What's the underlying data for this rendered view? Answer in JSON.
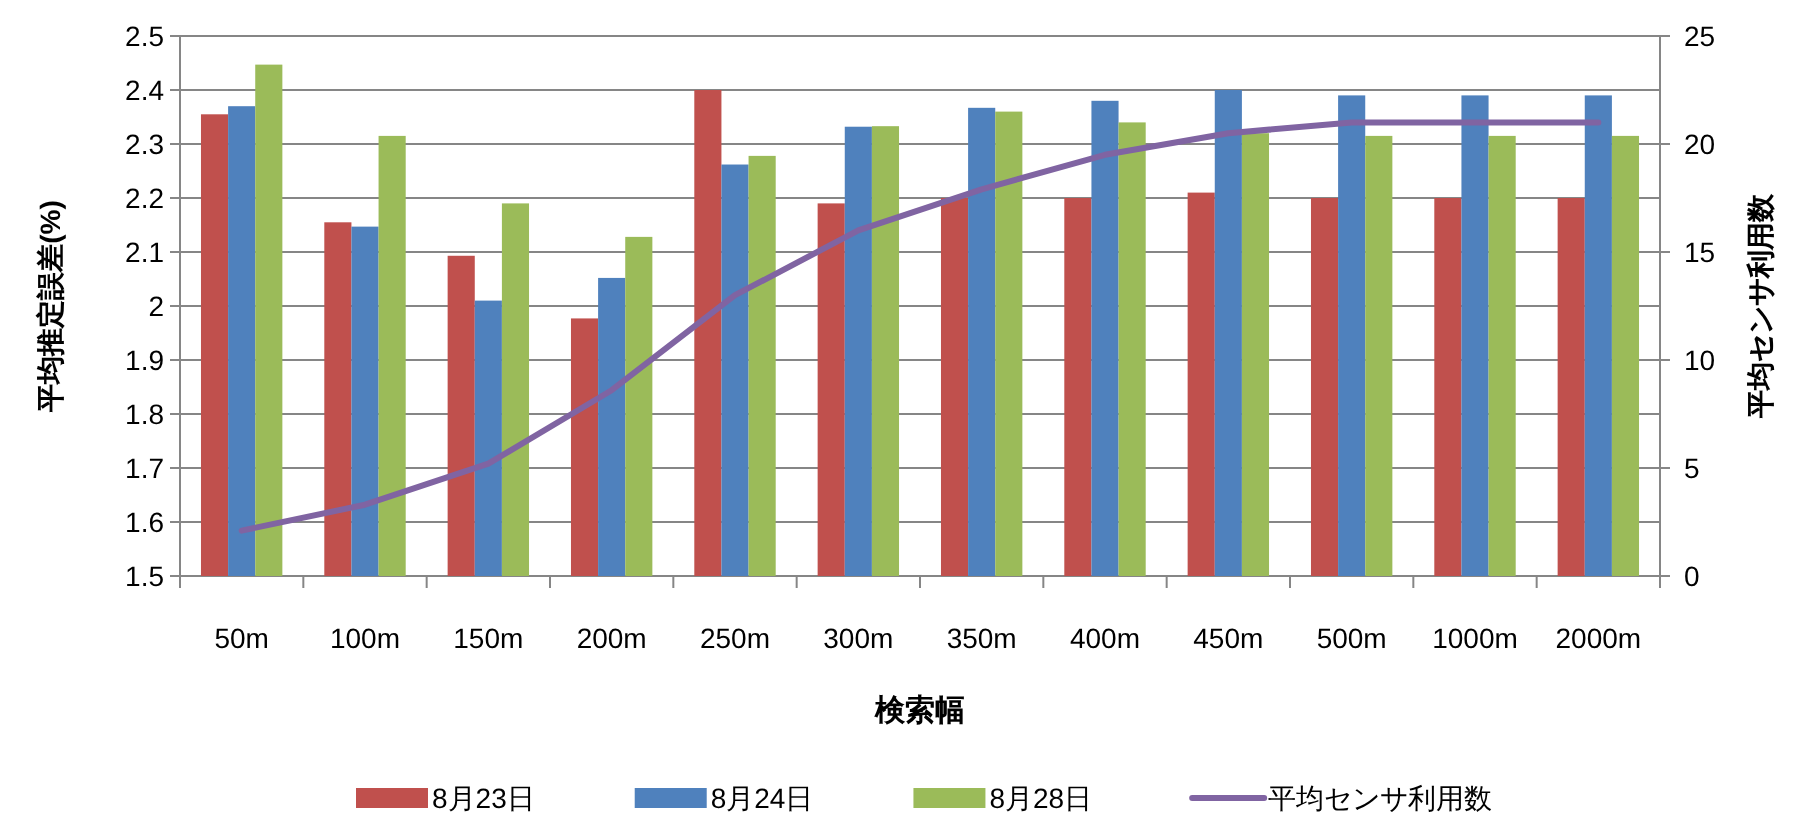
{
  "chart_data": {
    "type": "bar",
    "xlabel": "検索幅",
    "ylabel": "平均推定誤差(%)",
    "y2label": "平均センサ利用数",
    "categories": [
      "50m",
      "100m",
      "150m",
      "200m",
      "250m",
      "300m",
      "350m",
      "400m",
      "450m",
      "500m",
      "1000m",
      "2000m"
    ],
    "series": [
      {
        "name": "8月23日",
        "color": "#c0504d",
        "values": [
          2.355,
          2.155,
          2.093,
          1.977,
          2.4,
          2.19,
          2.2,
          2.2,
          2.21,
          2.2,
          2.2,
          2.2
        ]
      },
      {
        "name": "8月24日",
        "color": "#4f81bd",
        "values": [
          2.37,
          2.147,
          2.01,
          2.052,
          2.262,
          2.332,
          2.367,
          2.38,
          2.4,
          2.39,
          2.39,
          2.39
        ]
      },
      {
        "name": "8月28日",
        "color": "#9bbb59",
        "values": [
          2.447,
          2.315,
          2.19,
          2.128,
          2.278,
          2.333,
          2.36,
          2.34,
          2.32,
          2.315,
          2.315,
          2.315
        ]
      },
      {
        "name": "平均センサ利用数",
        "color": "#8064a2",
        "type": "line",
        "axis": "y2",
        "values": [
          2.1,
          3.3,
          5.2,
          8.6,
          13,
          16,
          17.9,
          19.5,
          20.5,
          21,
          21,
          21
        ]
      }
    ],
    "ylim": [
      1.5,
      2.5
    ],
    "yticks": [
      1.5,
      1.6,
      1.7,
      1.8,
      1.9,
      {
        "value": 2,
        "label": "2"
      },
      2.1,
      2.2,
      2.3,
      2.4,
      2.5
    ],
    "y2lim": [
      0,
      25
    ],
    "y2ticks": [
      0,
      5,
      10,
      15,
      20,
      25
    ],
    "grid": "y",
    "legend": "bottom",
    "line_style": "solid",
    "marker": "none"
  }
}
